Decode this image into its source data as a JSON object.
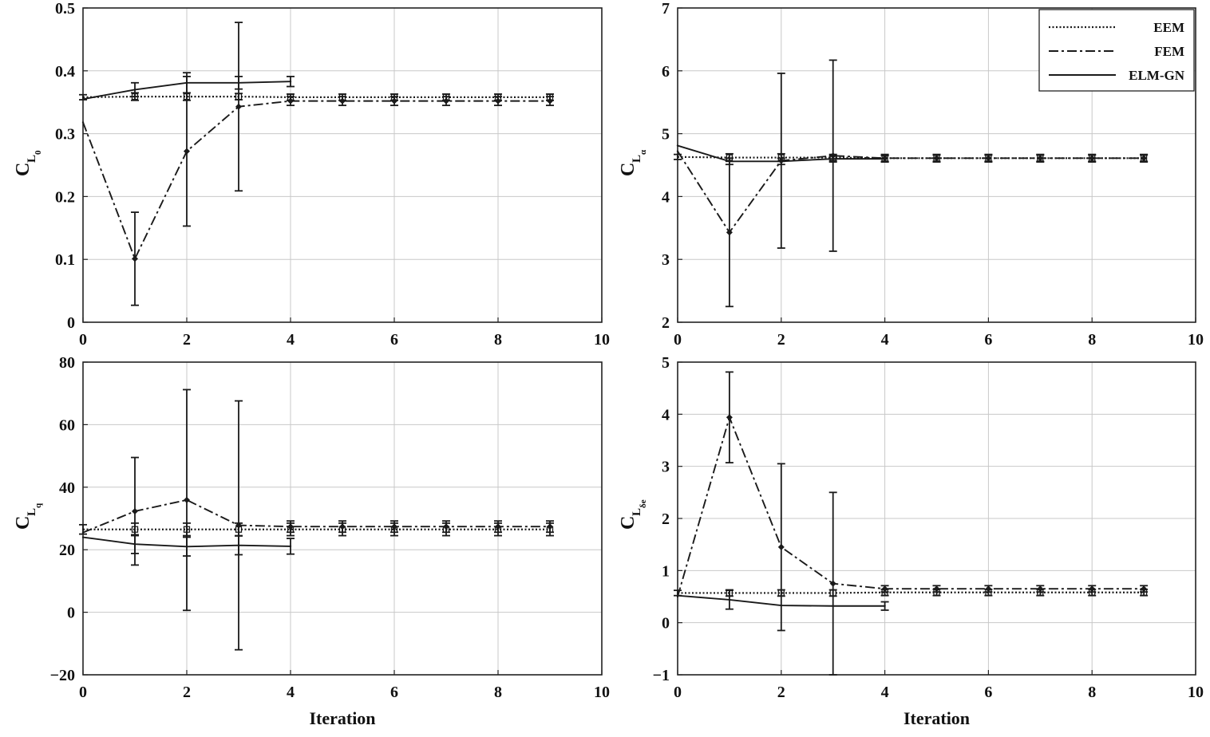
{
  "chart_data": [
    {
      "type": "line",
      "ylabel": {
        "main": "C",
        "sub": "L",
        "subsub": "0"
      },
      "xlabel": "",
      "xlim": [
        0,
        10
      ],
      "ylim": [
        0,
        0.5
      ],
      "xticks": [
        "0",
        "2",
        "4",
        "6",
        "8",
        "10"
      ],
      "yticks": [
        "0",
        "0.1",
        "0.2",
        "0.3",
        "0.4",
        "0.5"
      ],
      "series": [
        {
          "name": "EEM",
          "x": [
            0,
            1,
            2,
            3,
            4,
            5,
            6,
            7,
            8,
            9
          ],
          "values": [
            0.358,
            0.359,
            0.359,
            0.359,
            0.358,
            0.358,
            0.358,
            0.358,
            0.358,
            0.358
          ],
          "errors": [
            0.004,
            0.006,
            0.006,
            0.005,
            0.005,
            0.005,
            0.005,
            0.005,
            0.005,
            0.005
          ]
        },
        {
          "name": "FEM",
          "x": [
            0,
            1,
            2,
            3,
            4,
            5,
            6,
            7,
            8,
            9
          ],
          "values": [
            0.318,
            0.101,
            0.272,
            0.343,
            0.352,
            0.352,
            0.352,
            0.352,
            0.352,
            0.352
          ],
          "errors": [
            0.0,
            0.074,
            0.119,
            0.134,
            0.007,
            0.007,
            0.007,
            0.007,
            0.007,
            0.007
          ]
        },
        {
          "name": "ELM-GN",
          "x": [
            0,
            1,
            2,
            3,
            4
          ],
          "values": [
            0.355,
            0.37,
            0.381,
            0.381,
            0.383
          ],
          "errors": [
            0.0,
            0.011,
            0.016,
            0.01,
            0.008
          ]
        }
      ]
    },
    {
      "type": "line",
      "ylabel": {
        "main": "C",
        "sub": "L",
        "subsub": "α"
      },
      "xlabel": "",
      "xlim": [
        0,
        10
      ],
      "ylim": [
        2,
        7
      ],
      "xticks": [
        "0",
        "2",
        "4",
        "6",
        "8",
        "10"
      ],
      "yticks": [
        "2",
        "3",
        "4",
        "5",
        "6",
        "7"
      ],
      "legend": {
        "position": "top-right",
        "entries": [
          "EEM",
          "FEM",
          "ELM-GN"
        ]
      },
      "series": [
        {
          "name": "EEM",
          "x": [
            0,
            1,
            2,
            3,
            4,
            5,
            6,
            7,
            8,
            9
          ],
          "values": [
            4.63,
            4.62,
            4.62,
            4.62,
            4.61,
            4.61,
            4.61,
            4.61,
            4.61,
            4.61
          ],
          "errors": [
            0.04,
            0.06,
            0.06,
            0.05,
            0.05,
            0.05,
            0.05,
            0.05,
            0.05,
            0.05
          ]
        },
        {
          "name": "FEM",
          "x": [
            0,
            1,
            2,
            3,
            4,
            5,
            6,
            7,
            8,
            9
          ],
          "values": [
            4.72,
            3.43,
            4.57,
            4.65,
            4.61,
            4.61,
            4.61,
            4.61,
            4.61,
            4.61
          ],
          "errors": [
            0.0,
            1.18,
            1.39,
            1.52,
            0.06,
            0.06,
            0.06,
            0.06,
            0.06,
            0.06
          ]
        },
        {
          "name": "ELM-GN",
          "x": [
            0,
            1,
            2,
            3,
            4
          ],
          "values": [
            4.81,
            4.56,
            4.56,
            4.6,
            4.6
          ],
          "errors": [
            0.0,
            0.05,
            0.05,
            0.05,
            0.05
          ]
        }
      ]
    },
    {
      "type": "line",
      "ylabel": {
        "main": "C",
        "sub": "L",
        "subsub": "q"
      },
      "xlabel": "Iteration",
      "xlim": [
        0,
        10
      ],
      "ylim": [
        -20,
        80
      ],
      "xticks": [
        "0",
        "2",
        "4",
        "6",
        "8",
        "10"
      ],
      "yticks": [
        "−20",
        "0",
        "20",
        "40",
        "60",
        "80"
      ],
      "series": [
        {
          "name": "EEM",
          "x": [
            0,
            1,
            2,
            3,
            4,
            5,
            6,
            7,
            8,
            9
          ],
          "values": [
            26.5,
            26.5,
            26.5,
            26.5,
            26.5,
            26.5,
            26.5,
            26.5,
            26.5,
            26.5
          ],
          "errors": [
            1.5,
            2.0,
            2.0,
            2.0,
            2.0,
            2.0,
            2.0,
            2.0,
            2.0,
            2.0
          ]
        },
        {
          "name": "FEM",
          "x": [
            0,
            1,
            2,
            3,
            4,
            5,
            6,
            7,
            8,
            9
          ],
          "values": [
            25.5,
            32.3,
            35.9,
            27.8,
            27.4,
            27.4,
            27.4,
            27.4,
            27.4,
            27.4
          ],
          "errors": [
            0.0,
            17.2,
            35.3,
            39.8,
            1.8,
            1.8,
            1.8,
            1.8,
            1.8,
            1.8
          ]
        },
        {
          "name": "ELM-GN",
          "x": [
            0,
            1,
            2,
            3,
            4
          ],
          "values": [
            24.0,
            21.8,
            21.0,
            21.4,
            21.1
          ],
          "errors": [
            0.0,
            3.0,
            3.0,
            3.0,
            2.5
          ]
        }
      ]
    },
    {
      "type": "line",
      "ylabel": {
        "main": "C",
        "sub": "L",
        "subsub": "δe"
      },
      "xlabel": "Iteration",
      "xlim": [
        0,
        10
      ],
      "ylim": [
        -1,
        5
      ],
      "xticks": [
        "0",
        "2",
        "4",
        "6",
        "8",
        "10"
      ],
      "yticks": [
        "−1",
        "0",
        "1",
        "2",
        "3",
        "4",
        "5"
      ],
      "series": [
        {
          "name": "EEM",
          "x": [
            0,
            1,
            2,
            3,
            4,
            5,
            6,
            7,
            8,
            9
          ],
          "values": [
            0.57,
            0.57,
            0.57,
            0.57,
            0.58,
            0.58,
            0.58,
            0.58,
            0.58,
            0.58
          ],
          "errors": [
            0.05,
            0.06,
            0.06,
            0.06,
            0.06,
            0.06,
            0.06,
            0.06,
            0.06,
            0.06
          ]
        },
        {
          "name": "FEM",
          "x": [
            0,
            1,
            2,
            3,
            4,
            5,
            6,
            7,
            8,
            9
          ],
          "values": [
            0.5,
            3.94,
            1.45,
            0.75,
            0.65,
            0.65,
            0.65,
            0.65,
            0.65,
            0.65
          ],
          "errors": [
            0.0,
            0.87,
            1.6,
            1.75,
            0.06,
            0.06,
            0.06,
            0.06,
            0.06,
            0.06
          ]
        },
        {
          "name": "ELM-GN",
          "x": [
            0,
            1,
            2,
            3,
            4
          ],
          "values": [
            0.52,
            0.44,
            0.33,
            0.32,
            0.32
          ],
          "errors": [
            0.0,
            0.18,
            0.0,
            0.0,
            0.08
          ]
        }
      ]
    }
  ]
}
